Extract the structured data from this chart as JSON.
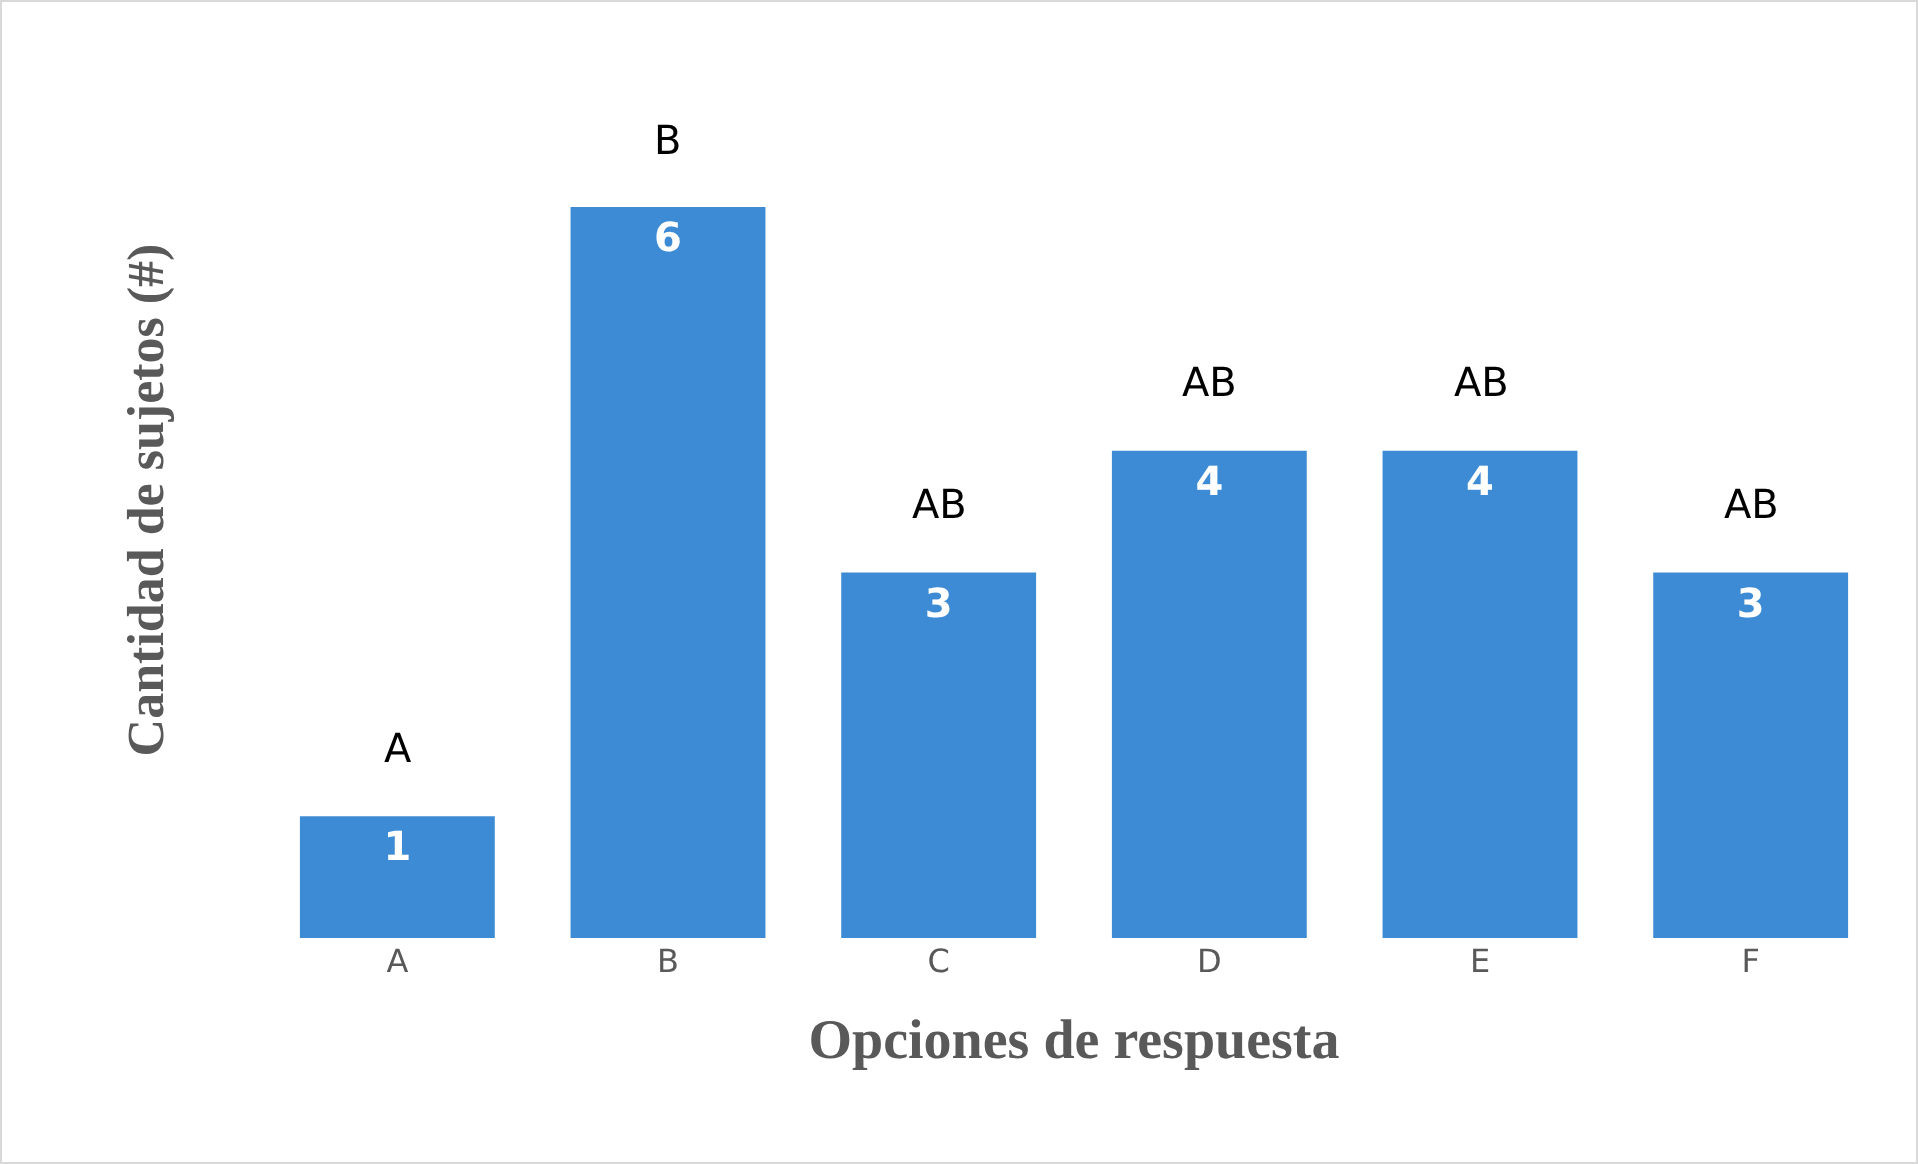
{
  "chart_data": {
    "type": "bar",
    "xlabel": "Opciones de respuesta",
    "ylabel": "Cantidad de sujetos (#)",
    "categories": [
      "A",
      "B",
      "C",
      "D",
      "E",
      "F"
    ],
    "values": [
      1,
      6,
      3,
      4,
      4,
      3
    ],
    "color": "#3d8bd4",
    "data_labels": true,
    "grid": false,
    "annotations": [
      "A",
      "B",
      "AB",
      "AB",
      "AB",
      "AB"
    ]
  }
}
